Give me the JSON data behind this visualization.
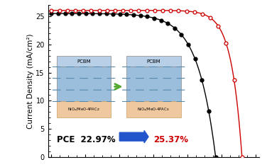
{
  "title": "",
  "ylabel": "Current Density (mA/cm²)",
  "xlabel": "",
  "ylim": [
    0,
    27
  ],
  "xlim": [
    -0.02,
    1.22
  ],
  "yticks": [
    0,
    5,
    10,
    15,
    20,
    25
  ],
  "bg_color": "#ffffff",
  "black_jsc": 25.5,
  "black_voc": 0.965,
  "black_ff": 9.5,
  "red_jsc": 26.05,
  "red_voc": 1.12,
  "red_ff": 16.0,
  "pce_black": "22.97%",
  "pce_red": "25.37%",
  "black_color": "#000000",
  "red_color": "#cc0000",
  "arrow_color": "#2255cc",
  "pcbm_color": "#b8cfe8",
  "perov_color": "#9bbedd",
  "nio_color": "#f0c8a0",
  "green_arrow_color": "#55aa33",
  "n_markers_black": 25,
  "n_markers_red": 25
}
